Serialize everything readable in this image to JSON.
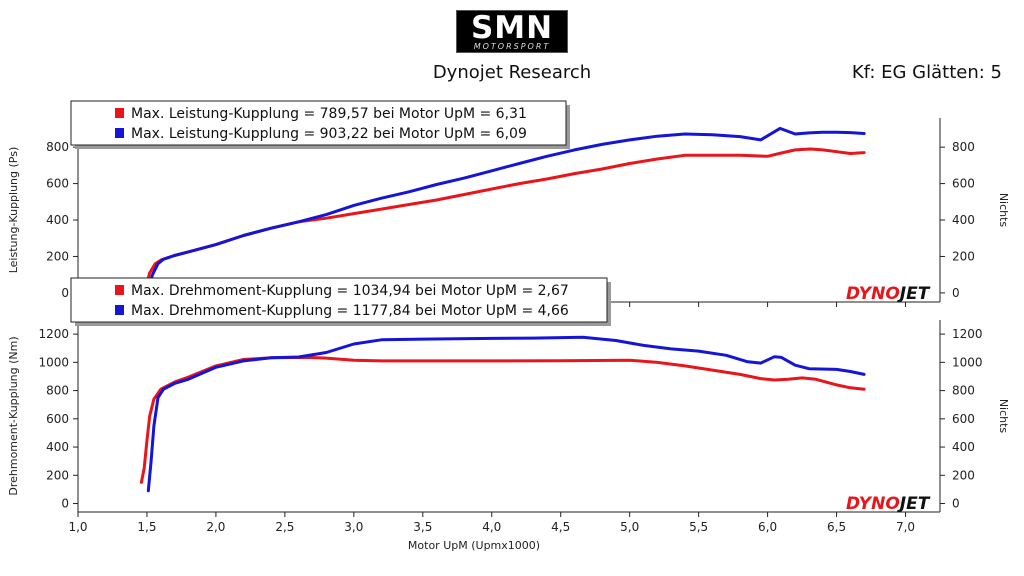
{
  "header": {
    "logo_main": "SMN",
    "logo_sub": "MOTORSPORT",
    "title": "Dynojet Research",
    "smoothing": "Kf: EG Glätten: 5"
  },
  "colors": {
    "run1": "#e8151b",
    "run2": "#1515d8"
  },
  "chart_data": [
    {
      "type": "line",
      "xlabel": "",
      "ylabel": "Leistung-Kupplung (Ps)",
      "ylabel_right": "Nichts",
      "xlim": [
        1.0,
        7.25
      ],
      "ylim": [
        -50,
        960
      ],
      "yticks": [
        0,
        200,
        400,
        600,
        800
      ],
      "yticklabels": [
        "0",
        "200",
        "400",
        "600",
        "800"
      ],
      "legend": [
        "Max. Leistung-Kupplung = 789,57 bei Motor UpM = 6,31",
        "Max. Leistung-Kupplung = 903,22 bei Motor UpM = 6,09"
      ],
      "brand": {
        "part1": "DYNO",
        "part2": "JET"
      },
      "series": [
        {
          "x": [
            1.48,
            1.52,
            1.56,
            1.6,
            1.7,
            1.8,
            2.0,
            2.2,
            2.4,
            2.6,
            2.8,
            3.0,
            3.2,
            3.4,
            3.6,
            3.8,
            4.0,
            4.2,
            4.4,
            4.6,
            4.8,
            5.0,
            5.2,
            5.4,
            5.6,
            5.8,
            6.0,
            6.1,
            6.2,
            6.31,
            6.4,
            6.5,
            6.6,
            6.7
          ],
          "y": [
            0,
            110,
            160,
            180,
            205,
            225,
            265,
            315,
            355,
            390,
            410,
            435,
            460,
            485,
            510,
            540,
            570,
            600,
            625,
            655,
            680,
            710,
            735,
            755,
            755,
            755,
            750,
            768,
            785,
            790,
            785,
            775,
            765,
            770
          ]
        },
        {
          "x": [
            1.5,
            1.54,
            1.58,
            1.62,
            1.7,
            1.8,
            2.0,
            2.2,
            2.4,
            2.6,
            2.8,
            3.0,
            3.2,
            3.4,
            3.6,
            3.8,
            4.0,
            4.2,
            4.4,
            4.6,
            4.8,
            5.0,
            5.2,
            5.4,
            5.6,
            5.8,
            5.95,
            6.09,
            6.2,
            6.3,
            6.4,
            6.5,
            6.6,
            6.7
          ],
          "y": [
            0,
            100,
            160,
            185,
            205,
            225,
            265,
            315,
            355,
            390,
            430,
            480,
            520,
            555,
            595,
            630,
            670,
            710,
            750,
            785,
            815,
            840,
            860,
            872,
            868,
            858,
            840,
            903,
            872,
            878,
            882,
            882,
            880,
            875
          ]
        }
      ]
    },
    {
      "type": "line",
      "xlabel": "Motor UpM (Upmx1000)",
      "ylabel": "Drehmoment-Kupplung (Nm)",
      "ylabel_right": "Nichts",
      "xlim": [
        1.0,
        7.25
      ],
      "ylim": [
        -60,
        1300
      ],
      "yticks": [
        0,
        200,
        400,
        600,
        800,
        1000,
        1200
      ],
      "yticklabels": [
        "0",
        "200",
        "400",
        "600",
        "800",
        "1000",
        "1200"
      ],
      "xticks": [
        1.0,
        1.5,
        2.0,
        2.5,
        3.0,
        3.5,
        4.0,
        4.5,
        5.0,
        5.5,
        6.0,
        6.5,
        7.0
      ],
      "xticklabels": [
        "1,0",
        "1,5",
        "2,0",
        "2,5",
        "3,0",
        "3,5",
        "4,0",
        "4,5",
        "5,0",
        "5,5",
        "6,0",
        "6,5",
        "7,0"
      ],
      "legend": [
        "Max. Drehmoment-Kupplung = 1034,94 bei Motor UpM = 2,67",
        "Max. Drehmoment-Kupplung = 1177,84 bei Motor UpM = 4,66"
      ],
      "brand": {
        "part1": "DYNO",
        "part2": "JET"
      },
      "series": [
        {
          "x": [
            1.46,
            1.48,
            1.5,
            1.52,
            1.55,
            1.6,
            1.7,
            1.8,
            2.0,
            2.2,
            2.4,
            2.67,
            2.8,
            3.0,
            3.2,
            3.5,
            4.0,
            4.5,
            5.0,
            5.2,
            5.4,
            5.6,
            5.8,
            5.95,
            6.05,
            6.15,
            6.25,
            6.35,
            6.5,
            6.6,
            6.7
          ],
          "y": [
            150,
            250,
            450,
            620,
            740,
            810,
            860,
            895,
            975,
            1020,
            1032,
            1035,
            1030,
            1015,
            1010,
            1010,
            1010,
            1012,
            1015,
            1000,
            975,
            945,
            915,
            885,
            875,
            880,
            890,
            880,
            840,
            820,
            810
          ]
        },
        {
          "x": [
            1.51,
            1.53,
            1.55,
            1.58,
            1.62,
            1.7,
            1.8,
            2.0,
            2.2,
            2.4,
            2.6,
            2.8,
            3.0,
            3.2,
            3.5,
            4.0,
            4.3,
            4.66,
            4.9,
            5.1,
            5.3,
            5.5,
            5.7,
            5.85,
            5.95,
            6.05,
            6.1,
            6.2,
            6.3,
            6.5,
            6.6,
            6.7
          ],
          "y": [
            90,
            300,
            550,
            750,
            810,
            850,
            880,
            965,
            1010,
            1032,
            1038,
            1070,
            1130,
            1160,
            1165,
            1170,
            1172,
            1178,
            1155,
            1120,
            1095,
            1080,
            1050,
            1005,
            995,
            1040,
            1035,
            980,
            955,
            950,
            935,
            915
          ]
        }
      ]
    }
  ]
}
